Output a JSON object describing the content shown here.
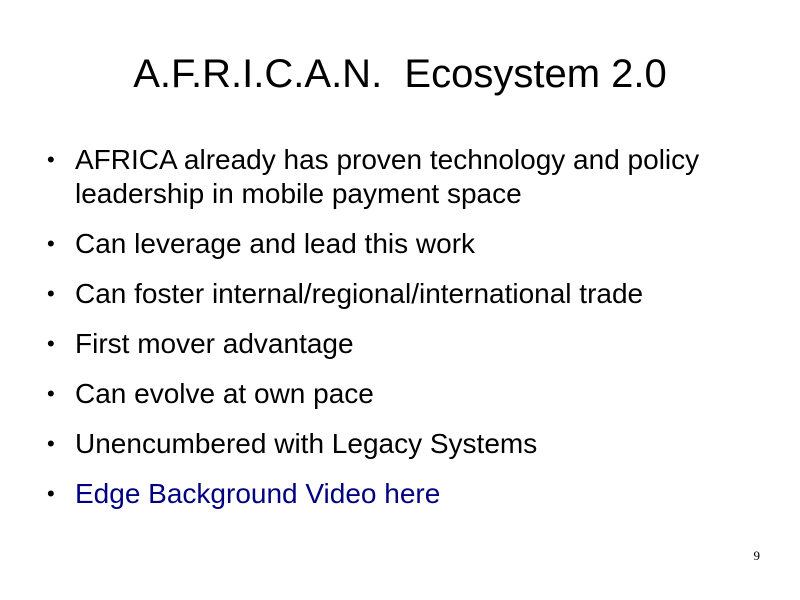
{
  "slide": {
    "title": "A.F.R.I.C.A.N.  Ecosystem 2.0",
    "page_number": "9"
  },
  "bullets": [
    {
      "text": "AFRICA already has proven technology and policy leadership in mobile payment space"
    },
    {
      "text": "Can leverage and lead this work"
    },
    {
      "text": "Can foster internal/regional/international trade"
    },
    {
      "text": "First mover advantage"
    },
    {
      "text": "Can evolve at own pace"
    },
    {
      "text": "Unencumbered with Legacy Systems"
    },
    {
      "text": "Edge Background Video here",
      "is_link": true
    }
  ],
  "bullet_symbol": "•",
  "colors": {
    "text": "#000000",
    "link": "#000080",
    "background": "#ffffff"
  }
}
